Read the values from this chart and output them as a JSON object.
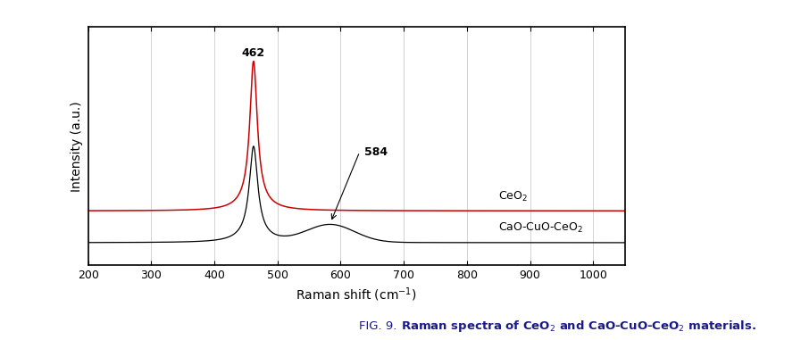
{
  "xlabel": "Raman shift (cm⁻¹)",
  "ylabel": "Intensity (a.u.)",
  "xlim": [
    200,
    1050
  ],
  "ylim": [
    -0.08,
    1.18
  ],
  "ceo2_color": "#cc0000",
  "cao_color": "#000000",
  "background_color": "#ffffff",
  "grid_color": "#bbbbbb",
  "annotation_462": "462",
  "annotation_584": "584",
  "label_ceo2": "CeO$_2$",
  "label_cao": "CaO-CuO-CeO$_2$",
  "xticks": [
    200,
    300,
    400,
    500,
    600,
    700,
    800,
    900,
    1000
  ],
  "caption_prefix": "FIG. 9. ",
  "caption_bold": "Raman spectra of CeO",
  "caption_2_sub": "2",
  "caption_mid": " and CaO-CuO-CeO",
  "caption_end_sub": "2",
  "caption_end": " materials."
}
